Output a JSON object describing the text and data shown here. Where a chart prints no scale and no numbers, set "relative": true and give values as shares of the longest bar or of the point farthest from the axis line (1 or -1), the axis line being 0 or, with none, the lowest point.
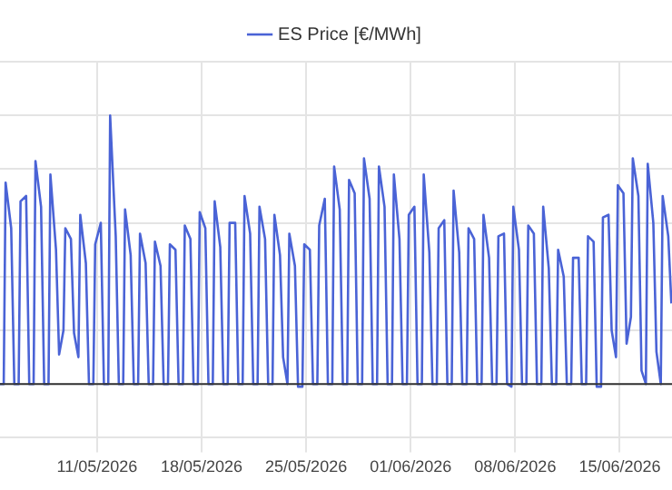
{
  "chart_data": {
    "type": "line",
    "relative": true,
    "legend": "top",
    "grid": true,
    "marker": "none",
    "line_style": "solid",
    "xlim": [
      "2026-05-04T12:00",
      "2026-06-18T12:00"
    ],
    "xticks": [
      {
        "value": "2026-05-11",
        "label": "11/05/2026"
      },
      {
        "value": "2026-05-18",
        "label": "18/05/2026"
      },
      {
        "value": "2026-05-25",
        "label": "25/05/2026"
      },
      {
        "value": "2026-06-01",
        "label": "01/06/2026"
      },
      {
        "value": "2026-06-08",
        "label": "08/06/2026"
      },
      {
        "value": "2026-06-15",
        "label": "15/06/2026"
      }
    ],
    "series": [
      {
        "name": "ES Price [€/MWh]",
        "color": "#4a63d6",
        "x": [
          "2026-05-04T12:00",
          "2026-05-04T18:00",
          "2026-05-04T21:00",
          "2026-05-05T06:00",
          "2026-05-05T11:00",
          "2026-05-05T18:00",
          "2026-05-05T21:00",
          "2026-05-06T06:00",
          "2026-05-06T11:00",
          "2026-05-06T18:00",
          "2026-05-06T21:00",
          "2026-05-07T06:00",
          "2026-05-07T11:00",
          "2026-05-07T18:00",
          "2026-05-07T21:00",
          "2026-05-08T06:00",
          "2026-05-08T11:00",
          "2026-05-08T18:00",
          "2026-05-08T21:00",
          "2026-05-09T06:00",
          "2026-05-09T11:00",
          "2026-05-09T18:00",
          "2026-05-09T21:00",
          "2026-05-10T06:00",
          "2026-05-10T11:00",
          "2026-05-10T18:00",
          "2026-05-10T21:00",
          "2026-05-11T06:00",
          "2026-05-11T11:00",
          "2026-05-11T18:00",
          "2026-05-11T21:00",
          "2026-05-12T06:00",
          "2026-05-12T11:00",
          "2026-05-12T18:00",
          "2026-05-12T21:00",
          "2026-05-13T06:00",
          "2026-05-13T11:00",
          "2026-05-13T18:00",
          "2026-05-13T21:00",
          "2026-05-14T06:00",
          "2026-05-14T11:00",
          "2026-05-14T18:00",
          "2026-05-14T21:00",
          "2026-05-15T06:00",
          "2026-05-15T11:00",
          "2026-05-15T18:00",
          "2026-05-15T21:00",
          "2026-05-16T06:00",
          "2026-05-16T11:00",
          "2026-05-16T18:00",
          "2026-05-16T21:00",
          "2026-05-17T06:00",
          "2026-05-17T11:00",
          "2026-05-17T18:00",
          "2026-05-17T21:00",
          "2026-05-18T06:00",
          "2026-05-18T11:00",
          "2026-05-18T18:00",
          "2026-05-18T21:00",
          "2026-05-19T06:00",
          "2026-05-19T11:00",
          "2026-05-19T18:00",
          "2026-05-19T21:00",
          "2026-05-20T06:00",
          "2026-05-20T11:00",
          "2026-05-20T18:00",
          "2026-05-20T21:00",
          "2026-05-21T06:00",
          "2026-05-21T11:00",
          "2026-05-21T18:00",
          "2026-05-21T21:00",
          "2026-05-22T06:00",
          "2026-05-22T11:00",
          "2026-05-22T18:00",
          "2026-05-22T21:00",
          "2026-05-23T06:00",
          "2026-05-23T11:00",
          "2026-05-23T18:00",
          "2026-05-23T21:00",
          "2026-05-24T06:00",
          "2026-05-24T11:00",
          "2026-05-24T18:00",
          "2026-05-24T21:00",
          "2026-05-25T06:00",
          "2026-05-25T11:00",
          "2026-05-25T18:00",
          "2026-05-25T21:00",
          "2026-05-26T06:00",
          "2026-05-26T11:00",
          "2026-05-26T18:00",
          "2026-05-26T21:00",
          "2026-05-27T06:00",
          "2026-05-27T11:00",
          "2026-05-27T18:00",
          "2026-05-27T21:00",
          "2026-05-28T06:00",
          "2026-05-28T11:00",
          "2026-05-28T18:00",
          "2026-05-28T21:00",
          "2026-05-29T06:00",
          "2026-05-29T11:00",
          "2026-05-29T18:00",
          "2026-05-29T21:00",
          "2026-05-30T06:00",
          "2026-05-30T11:00",
          "2026-05-30T18:00",
          "2026-05-30T21:00",
          "2026-05-31T06:00",
          "2026-05-31T11:00",
          "2026-05-31T18:00",
          "2026-05-31T21:00",
          "2026-06-01T06:00",
          "2026-06-01T11:00",
          "2026-06-01T18:00",
          "2026-06-01T21:00",
          "2026-06-02T06:00",
          "2026-06-02T11:00",
          "2026-06-02T18:00",
          "2026-06-02T21:00",
          "2026-06-03T06:00",
          "2026-06-03T11:00",
          "2026-06-03T18:00",
          "2026-06-03T21:00",
          "2026-06-04T06:00",
          "2026-06-04T11:00",
          "2026-06-04T18:00",
          "2026-06-04T21:00",
          "2026-06-05T06:00",
          "2026-06-05T11:00",
          "2026-06-05T18:00",
          "2026-06-05T21:00",
          "2026-06-06T06:00",
          "2026-06-06T11:00",
          "2026-06-06T18:00",
          "2026-06-06T21:00",
          "2026-06-07T06:00",
          "2026-06-07T11:00",
          "2026-06-07T18:00",
          "2026-06-07T21:00",
          "2026-06-08T06:00",
          "2026-06-08T11:00",
          "2026-06-08T18:00",
          "2026-06-08T21:00",
          "2026-06-09T06:00",
          "2026-06-09T11:00",
          "2026-06-09T18:00",
          "2026-06-09T21:00",
          "2026-06-10T06:00",
          "2026-06-10T11:00",
          "2026-06-10T18:00",
          "2026-06-10T21:00",
          "2026-06-11T06:00",
          "2026-06-11T11:00",
          "2026-06-11T18:00",
          "2026-06-11T21:00",
          "2026-06-12T06:00",
          "2026-06-12T11:00",
          "2026-06-12T18:00",
          "2026-06-12T21:00",
          "2026-06-13T06:00",
          "2026-06-13T11:00",
          "2026-06-13T18:00",
          "2026-06-13T21:00",
          "2026-06-14T06:00",
          "2026-06-14T11:00",
          "2026-06-14T18:00",
          "2026-06-14T21:00",
          "2026-06-15T06:00",
          "2026-06-15T11:00",
          "2026-06-15T18:00",
          "2026-06-15T21:00",
          "2026-06-16T06:00",
          "2026-06-16T11:00",
          "2026-06-16T18:00",
          "2026-06-16T21:00",
          "2026-06-17T06:00",
          "2026-06-17T11:00",
          "2026-06-17T18:00",
          "2026-06-17T21:00",
          "2026-06-18T06:00",
          "2026-06-18T11:00"
        ],
        "values": [
          0,
          0,
          0.75,
          0.58,
          0,
          0,
          0.68,
          0.7,
          0,
          0,
          0.83,
          0.66,
          0,
          0,
          0.78,
          0.5,
          0.11,
          0.2,
          0.58,
          0.54,
          0.19,
          0.1,
          0.63,
          0.45,
          0,
          0,
          0.52,
          0.6,
          0,
          0,
          1.0,
          0.55,
          0,
          0,
          0.65,
          0.48,
          0,
          0,
          0.56,
          0.45,
          0,
          0,
          0.53,
          0.44,
          0,
          0,
          0.52,
          0.5,
          0,
          0,
          0.59,
          0.54,
          0,
          0,
          0.64,
          0.58,
          0,
          0,
          0.68,
          0.51,
          0,
          0,
          0.6,
          0.6,
          0,
          0,
          0.7,
          0.56,
          0,
          0,
          0.66,
          0.54,
          0,
          0,
          0.63,
          0.48,
          0.1,
          0,
          0.56,
          0.44,
          -0.01,
          -0.01,
          0.52,
          0.5,
          0,
          0,
          0.59,
          0.69,
          0,
          0,
          0.81,
          0.65,
          0,
          0,
          0.76,
          0.71,
          0,
          0,
          0.84,
          0.69,
          0,
          0,
          0.81,
          0.66,
          0,
          0,
          0.78,
          0.54,
          0,
          0,
          0.63,
          0.66,
          0,
          0,
          0.78,
          0.49,
          0,
          0,
          0.58,
          0.61,
          0,
          0,
          0.72,
          0.49,
          0,
          0,
          0.58,
          0.54,
          0,
          0,
          0.63,
          0.47,
          0,
          0,
          0.55,
          0.56,
          0,
          -0.01,
          0.66,
          0.5,
          0,
          0,
          0.59,
          0.56,
          0,
          0,
          0.66,
          0.43,
          0,
          0,
          0.5,
          0.4,
          0,
          0,
          0.47,
          0.47,
          0,
          0,
          0.55,
          0.53,
          -0.01,
          -0.01,
          0.62,
          0.63,
          0.2,
          0.1,
          0.74,
          0.71,
          0.15,
          0.25,
          0.84,
          0.7,
          0.05,
          0,
          0.82,
          0.6,
          0.12,
          0,
          0.7,
          0.55,
          0.3
        ]
      }
    ]
  }
}
